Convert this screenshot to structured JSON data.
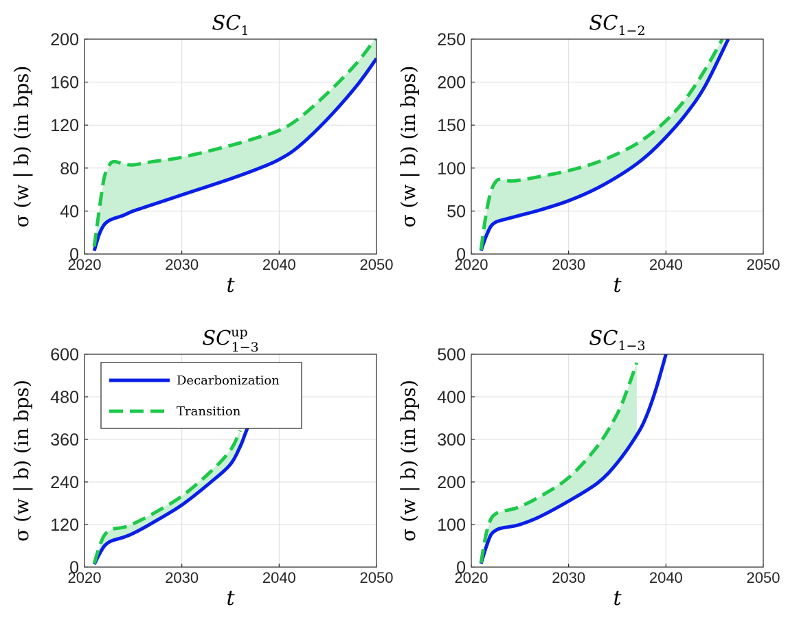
{
  "legend": [
    {
      "label": "Decarbonization",
      "color": "#0a1fe6",
      "style": "solid"
    },
    {
      "label": "Transition",
      "color": "#1ec84a",
      "style": "dashed"
    }
  ],
  "colors": {
    "fill": "#c9f0d4",
    "decarbonization": "#0a1fe6",
    "transition": "#1ec84a"
  },
  "chart_data": [
    {
      "type": "line",
      "title": "SC",
      "title_sub": "1",
      "title_sup": "",
      "ylabel": "σ (w | b) (in bps)",
      "xlabel": "t",
      "xlim": [
        2020,
        2050
      ],
      "ylim": [
        0,
        200
      ],
      "xticks": [
        2020,
        2030,
        2040,
        2050
      ],
      "yticks": [
        0,
        40,
        80,
        120,
        160,
        200
      ],
      "series": [
        {
          "name": "Decarbonization",
          "x": [
            2021,
            2021.5,
            2022,
            2022.5,
            2023,
            2024,
            2025,
            2027,
            2030,
            2035,
            2038,
            2040,
            2042,
            2045,
            2048,
            2050
          ],
          "values": [
            3,
            18,
            27,
            31,
            33,
            36,
            40,
            46,
            55,
            70,
            80,
            88,
            100,
            126,
            157,
            182
          ]
        },
        {
          "name": "Transition",
          "x": [
            2021,
            2021.5,
            2022,
            2022.5,
            2023,
            2024,
            2025,
            2027,
            2030,
            2035,
            2038,
            2040,
            2042,
            2045,
            2048,
            2050
          ],
          "values": [
            7,
            40,
            70,
            82,
            86,
            84,
            83,
            86,
            90,
            101,
            109,
            115,
            126,
            150,
            178,
            202
          ]
        }
      ]
    },
    {
      "type": "line",
      "title": "SC",
      "title_sub": "1−2",
      "title_sup": "",
      "ylabel": "σ (w | b) (in bps)",
      "xlabel": "t",
      "xlim": [
        2020,
        2050
      ],
      "ylim": [
        0,
        250
      ],
      "xticks": [
        2020,
        2030,
        2040,
        2050
      ],
      "yticks": [
        0,
        50,
        100,
        150,
        200,
        250
      ],
      "series": [
        {
          "name": "Decarbonization",
          "x": [
            2021,
            2021.5,
            2022,
            2022.5,
            2023,
            2024,
            2025,
            2027,
            2030,
            2033,
            2036,
            2038,
            2040,
            2042,
            2044,
            2046.4
          ],
          "values": [
            4,
            20,
            32,
            37,
            39,
            42,
            45,
            51,
            62,
            77,
            97,
            114,
            136,
            162,
            195,
            250
          ]
        },
        {
          "name": "Transition",
          "x": [
            2021,
            2021.5,
            2022,
            2022.5,
            2023,
            2024,
            2025,
            2027,
            2030,
            2033,
            2036,
            2038,
            2040,
            2042,
            2044,
            2045.8
          ],
          "values": [
            5,
            45,
            72,
            84,
            87,
            85,
            86,
            90,
            97,
            107,
            122,
            136,
            155,
            180,
            214,
            250
          ]
        }
      ]
    },
    {
      "type": "line",
      "title": "SC",
      "title_sub": "1−3",
      "title_sup": "up",
      "ylabel": "σ (w | b) (in bps)",
      "xlabel": "t",
      "xlim": [
        2020,
        2050
      ],
      "ylim": [
        0,
        600
      ],
      "xticks": [
        2020,
        2030,
        2040,
        2050
      ],
      "yticks": [
        0,
        120,
        240,
        360,
        480,
        600
      ],
      "series": [
        {
          "name": "Decarbonization",
          "x": [
            2021,
            2021.5,
            2022,
            2022.5,
            2023,
            2024,
            2025,
            2027,
            2030,
            2033,
            2035,
            2036,
            2036.5,
            2037
          ],
          "values": [
            8,
            35,
            58,
            70,
            76,
            84,
            95,
            125,
            175,
            240,
            290,
            340,
            375,
            410
          ]
        },
        {
          "name": "Transition",
          "x": [
            2021,
            2021.5,
            2022,
            2022.5,
            2023,
            2024,
            2025,
            2027,
            2030,
            2033,
            2035,
            2036
          ],
          "values": [
            10,
            55,
            88,
            102,
            108,
            112,
            122,
            150,
            200,
            270,
            330,
            385
          ]
        }
      ]
    },
    {
      "type": "line",
      "title": "SC",
      "title_sub": "1−3",
      "title_sup": "",
      "ylabel": "σ (w | b) (in bps)",
      "xlabel": "t",
      "xlim": [
        2020,
        2050
      ],
      "ylim": [
        0,
        500
      ],
      "xticks": [
        2020,
        2030,
        2040,
        2050
      ],
      "yticks": [
        0,
        100,
        200,
        300,
        400,
        500
      ],
      "series": [
        {
          "name": "Decarbonization",
          "x": [
            2021,
            2021.5,
            2022,
            2022.5,
            2023,
            2024,
            2025,
            2027,
            2030,
            2033,
            2035,
            2037,
            2038,
            2039,
            2040
          ],
          "values": [
            8,
            45,
            75,
            86,
            91,
            95,
            100,
            118,
            155,
            198,
            245,
            310,
            355,
            420,
            500
          ]
        },
        {
          "name": "Transition",
          "x": [
            2021,
            2021.5,
            2022,
            2022.5,
            2023,
            2024,
            2025,
            2027,
            2030,
            2033,
            2035,
            2036,
            2037
          ],
          "values": [
            10,
            75,
            112,
            125,
            130,
            135,
            142,
            165,
            210,
            285,
            360,
            415,
            480
          ]
        }
      ],
      "fill_end_x": 2037
    }
  ]
}
